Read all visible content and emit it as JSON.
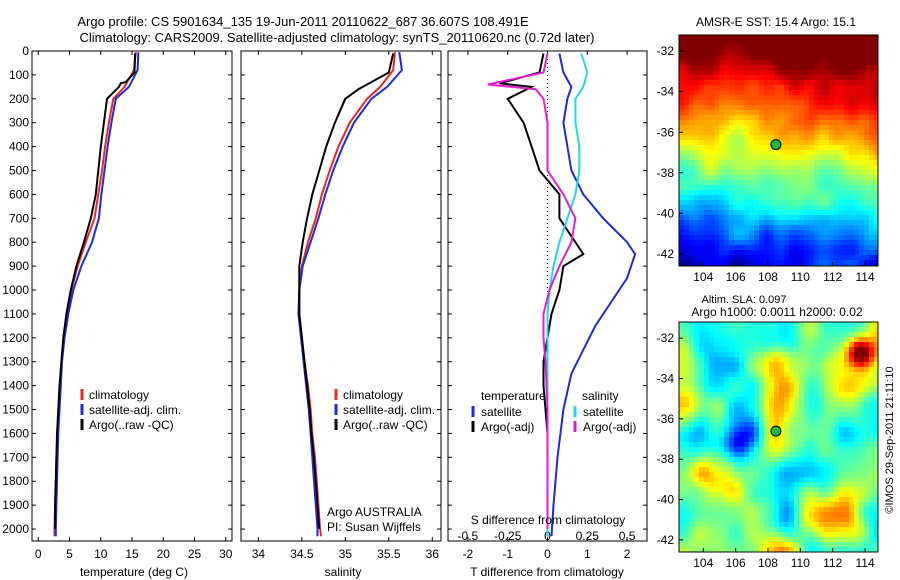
{
  "title_line1": "Argo profile: CS 5901634_135 19-Jun-2011 20110622_687 36.607S 108.491E",
  "title_line2": "Climatology: CARS2009. Satellite-adjusted climatology: synTS_20110620.nc (0.72d later)",
  "colors": {
    "climatology": "#e8281e",
    "satellite": "#1e2ad8",
    "argo": "#000000",
    "sat_cyan": "#22d8e8",
    "argo_magenta": "#e020d0"
  },
  "chart_data": [
    {
      "type": "line",
      "panel": "temperature",
      "xlabel": "temperature (deg C)",
      "xlim": [
        -1,
        31
      ],
      "xticks": [
        0,
        5,
        10,
        15,
        20,
        25,
        30
      ],
      "ylim": [
        2050,
        0
      ],
      "yticks": [
        0,
        100,
        200,
        300,
        400,
        500,
        600,
        700,
        800,
        900,
        1000,
        1100,
        1200,
        1300,
        1400,
        1500,
        1600,
        1700,
        1800,
        1900,
        2000
      ],
      "legend": [
        "climatology",
        "satellite-adj. clim.",
        "Argo(..raw -QC)"
      ],
      "series": [
        {
          "name": "climatology",
          "color": "#e8281e",
          "points": [
            [
              15.6,
              5
            ],
            [
              15.3,
              80
            ],
            [
              13.8,
              150
            ],
            [
              12.0,
              200
            ],
            [
              11.3,
              300
            ],
            [
              10.7,
              400
            ],
            [
              10.2,
              500
            ],
            [
              9.6,
              600
            ],
            [
              9.0,
              700
            ],
            [
              7.6,
              800
            ],
            [
              6.3,
              900
            ],
            [
              5.3,
              1000
            ],
            [
              4.6,
              1100
            ],
            [
              4.1,
              1200
            ],
            [
              3.7,
              1300
            ],
            [
              3.5,
              1400
            ],
            [
              3.3,
              1500
            ],
            [
              3.1,
              1600
            ],
            [
              2.9,
              1700
            ],
            [
              2.8,
              1800
            ],
            [
              2.7,
              1900
            ],
            [
              2.6,
              2000
            ],
            [
              2.6,
              2030
            ]
          ]
        },
        {
          "name": "satellite-adj. clim.",
          "color": "#1e2ad8",
          "points": [
            [
              16.0,
              5
            ],
            [
              15.9,
              80
            ],
            [
              14.5,
              150
            ],
            [
              12.4,
              200
            ],
            [
              11.7,
              300
            ],
            [
              11.1,
              400
            ],
            [
              10.6,
              500
            ],
            [
              10.1,
              600
            ],
            [
              9.7,
              700
            ],
            [
              8.6,
              800
            ],
            [
              6.9,
              900
            ],
            [
              5.6,
              1000
            ],
            [
              4.8,
              1100
            ],
            [
              4.2,
              1200
            ],
            [
              3.8,
              1300
            ],
            [
              3.6,
              1400
            ],
            [
              3.4,
              1500
            ],
            [
              3.2,
              1600
            ],
            [
              3.1,
              1700
            ],
            [
              3.0,
              1800
            ],
            [
              2.9,
              1900
            ],
            [
              2.8,
              2000
            ],
            [
              2.8,
              2030
            ]
          ]
        },
        {
          "name": "Argo(..raw -QC)",
          "color": "#000000",
          "points": [
            [
              15.5,
              10
            ],
            [
              15.4,
              90
            ],
            [
              14.0,
              130
            ],
            [
              13.2,
              135
            ],
            [
              12.9,
              150
            ],
            [
              11.0,
              200
            ],
            [
              10.5,
              300
            ],
            [
              10.0,
              400
            ],
            [
              9.6,
              500
            ],
            [
              9.2,
              600
            ],
            [
              8.4,
              700
            ],
            [
              7.3,
              800
            ],
            [
              6.1,
              900
            ],
            [
              5.2,
              1000
            ],
            [
              4.5,
              1100
            ],
            [
              4.0,
              1200
            ],
            [
              3.7,
              1300
            ],
            [
              3.4,
              1400
            ],
            [
              3.2,
              1500
            ],
            [
              3.0,
              1600
            ],
            [
              2.9,
              1700
            ],
            [
              2.8,
              1800
            ],
            [
              2.7,
              1900
            ],
            [
              2.7,
              2000
            ]
          ]
        }
      ]
    },
    {
      "type": "line",
      "panel": "salinity",
      "xlabel": "salinity",
      "xlim": [
        33.8,
        36.1
      ],
      "xticks": [
        34,
        34.5,
        35,
        35.5,
        36
      ],
      "ylim": [
        2050,
        0
      ],
      "legend": [
        "climatology",
        "satellite-adj. clim.",
        "Argo(..raw -QC)"
      ],
      "annotation": [
        "Argo AUSTRALIA",
        "PI: Susan Wijffels"
      ],
      "series": [
        {
          "name": "climatology",
          "color": "#e8281e",
          "points": [
            [
              35.57,
              5
            ],
            [
              35.55,
              80
            ],
            [
              35.4,
              150
            ],
            [
              35.25,
              200
            ],
            [
              35.05,
              300
            ],
            [
              34.92,
              400
            ],
            [
              34.82,
              500
            ],
            [
              34.73,
              600
            ],
            [
              34.66,
              700
            ],
            [
              34.57,
              800
            ],
            [
              34.5,
              900
            ],
            [
              34.47,
              1000
            ],
            [
              34.47,
              1100
            ],
            [
              34.5,
              1200
            ],
            [
              34.53,
              1300
            ],
            [
              34.57,
              1400
            ],
            [
              34.6,
              1500
            ],
            [
              34.62,
              1600
            ],
            [
              34.65,
              1700
            ],
            [
              34.67,
              1800
            ],
            [
              34.69,
              1900
            ],
            [
              34.71,
              2000
            ],
            [
              34.72,
              2030
            ]
          ]
        },
        {
          "name": "satellite-adj. clim.",
          "color": "#1e2ad8",
          "points": [
            [
              35.62,
              5
            ],
            [
              35.65,
              80
            ],
            [
              35.48,
              150
            ],
            [
              35.3,
              200
            ],
            [
              35.1,
              300
            ],
            [
              34.97,
              400
            ],
            [
              34.86,
              500
            ],
            [
              34.77,
              600
            ],
            [
              34.69,
              700
            ],
            [
              34.6,
              800
            ],
            [
              34.51,
              900
            ],
            [
              34.47,
              1000
            ],
            [
              34.46,
              1100
            ],
            [
              34.49,
              1200
            ],
            [
              34.52,
              1300
            ],
            [
              34.55,
              1400
            ],
            [
              34.58,
              1500
            ],
            [
              34.6,
              1600
            ],
            [
              34.62,
              1700
            ],
            [
              34.64,
              1800
            ],
            [
              34.66,
              1900
            ],
            [
              34.68,
              2000
            ],
            [
              34.68,
              2030
            ]
          ]
        },
        {
          "name": "Argo(..raw -QC)",
          "color": "#000000",
          "points": [
            [
              35.55,
              10
            ],
            [
              35.5,
              90
            ],
            [
              35.3,
              130
            ],
            [
              35.15,
              160
            ],
            [
              35.0,
              200
            ],
            [
              34.88,
              300
            ],
            [
              34.78,
              400
            ],
            [
              34.7,
              500
            ],
            [
              34.62,
              600
            ],
            [
              34.56,
              700
            ],
            [
              34.51,
              800
            ],
            [
              34.47,
              900
            ],
            [
              34.47,
              1000
            ],
            [
              34.47,
              1100
            ],
            [
              34.5,
              1200
            ],
            [
              34.53,
              1300
            ],
            [
              34.56,
              1400
            ],
            [
              34.59,
              1500
            ],
            [
              34.61,
              1600
            ],
            [
              34.64,
              1700
            ],
            [
              34.66,
              1800
            ],
            [
              34.68,
              1900
            ],
            [
              34.7,
              2000
            ]
          ]
        }
      ]
    },
    {
      "type": "line",
      "panel": "difference",
      "xlabel": "T difference from climatology",
      "xlabel_top": "S difference from climatology",
      "xlim": [
        -2.5,
        2.5
      ],
      "xticks": [
        -2,
        -1,
        0,
        1,
        2
      ],
      "xticks_top": [
        "-0.5",
        "-0.25",
        "0",
        "0.25",
        "0.5"
      ],
      "ylim": [
        2050,
        0
      ],
      "legend_headers": [
        "temperature",
        "salinity"
      ],
      "legend": [
        "satellite",
        "Argo(-adj)",
        "satellite",
        "Argo(-adj)"
      ],
      "series": [
        {
          "name": "satellite",
          "color": "#1e2ad8",
          "points": [
            [
              0.3,
              10
            ],
            [
              0.4,
              90
            ],
            [
              0.6,
              150
            ],
            [
              0.5,
              200
            ],
            [
              0.4,
              300
            ],
            [
              0.5,
              400
            ],
            [
              0.6,
              500
            ],
            [
              0.9,
              600
            ],
            [
              1.4,
              700
            ],
            [
              2.0,
              800
            ],
            [
              2.2,
              850
            ],
            [
              2.0,
              950
            ],
            [
              1.6,
              1050
            ],
            [
              1.2,
              1150
            ],
            [
              0.9,
              1250
            ],
            [
              0.6,
              1350
            ],
            [
              0.4,
              1500
            ],
            [
              0.25,
              1700
            ],
            [
              0.15,
              1900
            ],
            [
              0.1,
              2030
            ]
          ]
        },
        {
          "name": "Argo(-adj)",
          "color": "#000000",
          "points": [
            [
              -0.1,
              10
            ],
            [
              -0.2,
              90
            ],
            [
              -1.2,
              135
            ],
            [
              -0.4,
              150
            ],
            [
              -1.0,
              200
            ],
            [
              -0.6,
              300
            ],
            [
              -0.4,
              400
            ],
            [
              -0.2,
              500
            ],
            [
              0.3,
              600
            ],
            [
              0.3,
              700
            ],
            [
              0.7,
              800
            ],
            [
              0.9,
              850
            ],
            [
              0.4,
              900
            ],
            [
              0.3,
              1000
            ],
            [
              0.1,
              1100
            ],
            [
              0.0,
              1200
            ],
            [
              -0.1,
              1300
            ],
            [
              -0.1,
              1400
            ],
            [
              -0.05,
              1500
            ],
            [
              0.0,
              1600
            ],
            [
              0.0,
              1800
            ],
            [
              0.0,
              2000
            ]
          ]
        },
        {
          "name": "satellite",
          "color": "#22d8e8",
          "points": [
            [
              0.85,
              10
            ],
            [
              1.0,
              90
            ],
            [
              0.9,
              150
            ],
            [
              0.7,
              200
            ],
            [
              0.7,
              300
            ],
            [
              0.8,
              400
            ],
            [
              0.8,
              500
            ],
            [
              0.7,
              600
            ],
            [
              0.5,
              700
            ],
            [
              0.3,
              800
            ],
            [
              0.15,
              900
            ],
            [
              0.05,
              1000
            ],
            [
              0.0,
              1100
            ],
            [
              0.0,
              1300
            ],
            [
              0.0,
              1500
            ],
            [
              0.0,
              1700
            ],
            [
              0.0,
              1900
            ],
            [
              0.0,
              2030
            ]
          ]
        },
        {
          "name": "Argo(-adj)",
          "color": "#e020d0",
          "points": [
            [
              0.0,
              10
            ],
            [
              -0.1,
              90
            ],
            [
              -1.5,
              140
            ],
            [
              -0.3,
              160
            ],
            [
              -0.1,
              200
            ],
            [
              0.0,
              300
            ],
            [
              0.0,
              400
            ],
            [
              0.0,
              500
            ],
            [
              0.4,
              600
            ],
            [
              0.7,
              700
            ],
            [
              0.6,
              800
            ],
            [
              0.3,
              900
            ],
            [
              0.05,
              1000
            ],
            [
              -0.1,
              1100
            ],
            [
              -0.1,
              1200
            ],
            [
              -0.05,
              1300
            ],
            [
              0.0,
              1500
            ],
            [
              0.0,
              1800
            ],
            [
              0.0,
              2000
            ]
          ]
        }
      ]
    },
    {
      "type": "heatmap",
      "panel": "sst_map",
      "title": "AMSR-E SST: 15.4 Argo: 15.1",
      "xticks": [
        104,
        106,
        108,
        110,
        112,
        114
      ],
      "yticks": [
        -32,
        -34,
        -36,
        -38,
        -40,
        -42
      ],
      "xlim": [
        102.5,
        114.8
      ],
      "ylim": [
        -42.6,
        -31.2
      ],
      "marker": {
        "lon": 108.491,
        "lat": -36.607
      }
    },
    {
      "type": "heatmap",
      "panel": "sla_map",
      "title_line1": "Altim. SLA: 0.097",
      "title_line2": "Argo h1000: 0.0011 h2000: 0.02",
      "xticks": [
        104,
        106,
        108,
        110,
        112,
        114
      ],
      "yticks": [
        -32,
        -34,
        -36,
        -38,
        -40,
        -42
      ],
      "xlim": [
        102.5,
        114.8
      ],
      "ylim": [
        -42.6,
        -31.2
      ],
      "marker": {
        "lon": 108.491,
        "lat": -36.607
      }
    }
  ],
  "credit": "©IMOS 29-Sep-2011 21:11:10"
}
